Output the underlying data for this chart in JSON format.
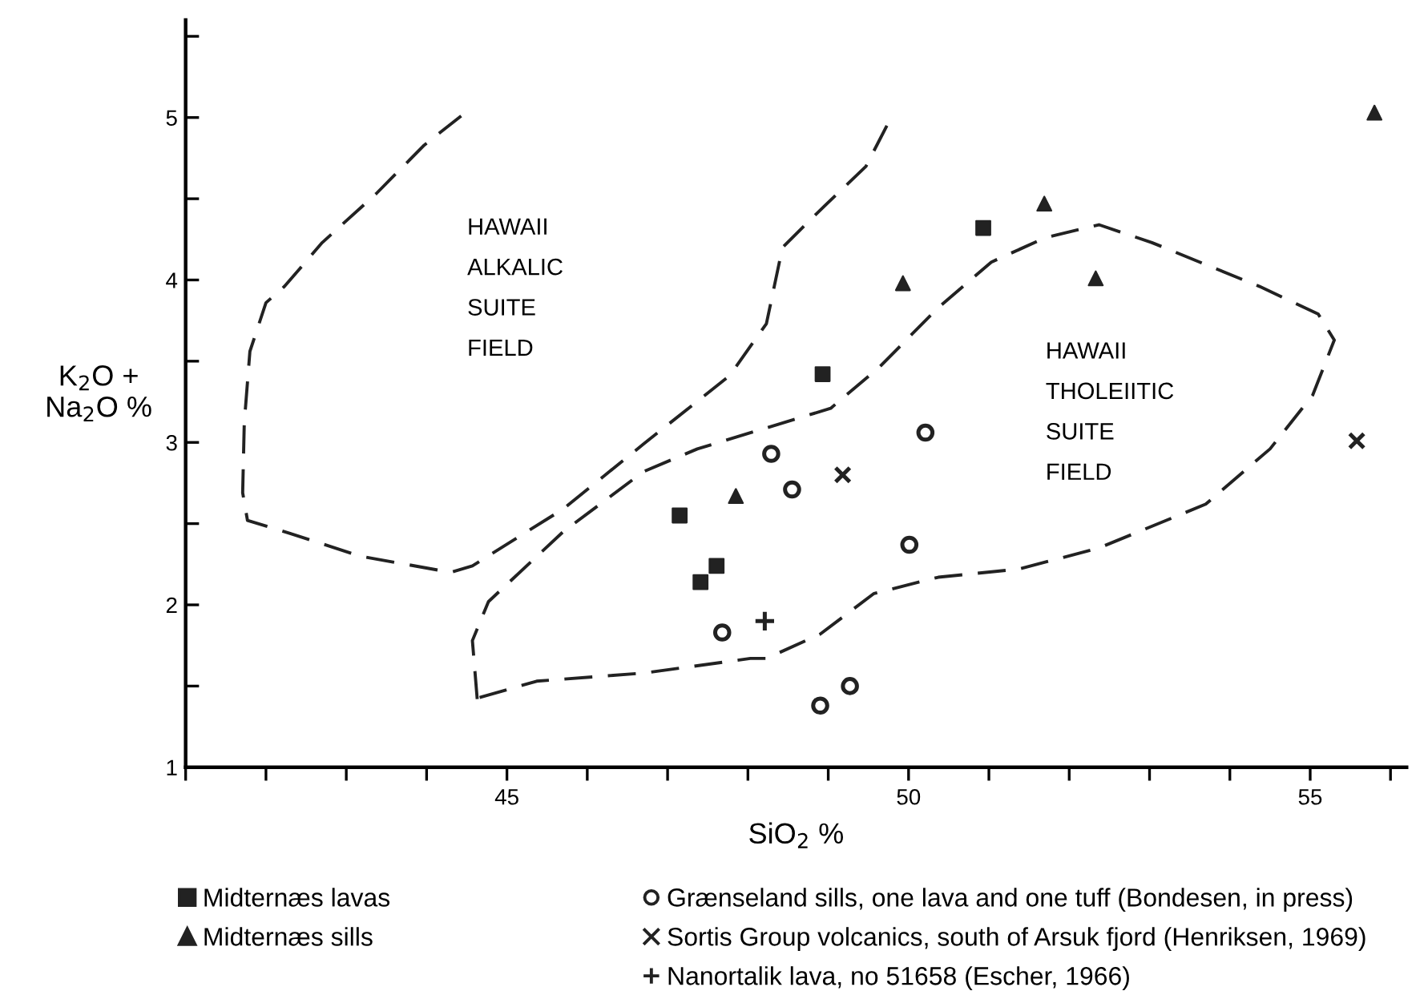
{
  "chart_data": {
    "type": "scatter",
    "xlabel": "SiO$_{2}$ %",
    "ylabel": "K$_{2}$O +\nNa$_{2}$O %",
    "xlim": [
      41,
      56.2
    ],
    "ylim": [
      1,
      5.6
    ],
    "xticks": [
      {
        "value": 41,
        "label": null
      },
      {
        "value": 42,
        "label": null
      },
      {
        "value": 43,
        "label": null
      },
      {
        "value": 44,
        "label": null
      },
      45,
      {
        "value": 46,
        "label": null
      },
      {
        "value": 47,
        "label": null
      },
      {
        "value": 48,
        "label": null
      },
      {
        "value": 49,
        "label": null
      },
      50,
      {
        "value": 51,
        "label": null
      },
      {
        "value": 52,
        "label": null
      },
      {
        "value": 53,
        "label": null
      },
      {
        "value": 54,
        "label": null
      },
      55,
      {
        "value": 56,
        "label": null
      }
    ],
    "yticks": [
      1,
      {
        "value": 1.5,
        "label": null
      },
      2,
      {
        "value": 2.5,
        "label": null
      },
      3,
      {
        "value": 3.5,
        "label": null
      },
      4,
      {
        "value": 4.5,
        "label": null
      },
      5,
      {
        "value": 5.5,
        "label": null
      }
    ],
    "grid": false,
    "legend": "bottom",
    "series": [
      {
        "name": "Midternæs lavas",
        "color": "#222222",
        "marker": "square",
        "x": [
          47.15,
          47.61,
          47.41,
          50.93,
          48.93
        ],
        "values": [
          2.55,
          2.24,
          2.14,
          4.32,
          3.42
        ]
      },
      {
        "name": "Midternæs sills",
        "color": "#222222",
        "marker": "triangle",
        "x": [
          47.85,
          55.8,
          51.69,
          49.93,
          52.33
        ],
        "values": [
          2.67,
          5.03,
          4.47,
          3.98,
          4.01
        ]
      },
      {
        "name": "Grænseland sills, one lava and one tuff (Bondesen, in press)",
        "color": "#222222",
        "marker": "circle",
        "x": [
          48.29,
          48.55,
          47.68,
          50.21,
          50.01,
          49.27,
          48.9
        ],
        "values": [
          2.93,
          2.71,
          1.83,
          3.06,
          2.37,
          1.5,
          1.38
        ]
      },
      {
        "name": "Sortis Group volcanics, south of Arsuk fjord (Henriksen, 1969)",
        "color": "#222222",
        "marker": "cross",
        "x": [
          49.18,
          55.58
        ],
        "values": [
          2.8,
          3.01
        ]
      },
      {
        "name": "Nanortalik lava, no 51658 (Escher, 1966)",
        "color": "#222222",
        "x": [
          48.21
        ],
        "values": [
          1.9
        ]
      },
      {
        "type": "line",
        "color": "#222222",
        "line_style": "dashed",
        "marker": "none",
        "x": [
          44.43,
          43.97,
          43.37,
          42.7,
          42.23,
          42.0,
          41.8,
          41.73,
          41.71,
          41.77,
          42.3,
          43.17,
          44.3,
          44.57,
          45.7,
          46.7,
          47.77,
          48.23,
          48.43,
          48.9,
          49.47,
          49.73
        ],
        "values": [
          5.01,
          4.83,
          4.53,
          4.23,
          3.96,
          3.86,
          3.56,
          3.12,
          2.69,
          2.52,
          2.44,
          2.3,
          2.2,
          2.24,
          2.59,
          2.99,
          3.41,
          3.73,
          4.2,
          4.43,
          4.7,
          4.95
        ]
      },
      {
        "type": "line",
        "color": "#222222",
        "line_style": "dashed",
        "marker": "none",
        "x": [
          44.63,
          44.57,
          44.77,
          45.7,
          46.7,
          47.37,
          48.7,
          49.03,
          49.63,
          50.37,
          51.03,
          51.7,
          52.37,
          53.03,
          54.37,
          55.1,
          55.3,
          55.03,
          54.5,
          53.7,
          52.37,
          51.37,
          50.37,
          49.57,
          48.9,
          48.23,
          48.03,
          46.7,
          45.37,
          44.66
        ],
        "values": [
          1.42,
          1.78,
          2.02,
          2.45,
          2.82,
          2.96,
          3.16,
          3.21,
          3.46,
          3.83,
          4.11,
          4.26,
          4.34,
          4.23,
          3.96,
          3.79,
          3.63,
          3.29,
          2.96,
          2.62,
          2.35,
          2.22,
          2.17,
          2.07,
          1.82,
          1.67,
          1.67,
          1.58,
          1.53,
          1.43
        ]
      }
    ],
    "annotations": [
      "HAWAII\nALKALIC\nSUITE\nFIELD",
      "HAWAII\nTHOLEIITIC\nSUITE\nFIELD"
    ]
  }
}
